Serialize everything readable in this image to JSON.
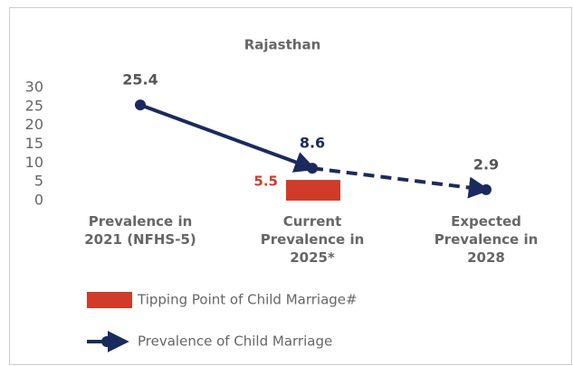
{
  "chart_data": {
    "type": "line",
    "title": "Rajasthan",
    "categories": [
      "Prevalence in\n2021 (NFHS-5)",
      "Current\nPrevalence in\n2025*",
      "Expected\nPrevalence in\n2028"
    ],
    "series": [
      {
        "name": "Tipping Point of Child Marriage#",
        "type": "bar",
        "color": "#d13b2a",
        "values": [
          null,
          5.5,
          null
        ]
      },
      {
        "name": "Prevalence of Child Marriage",
        "type": "line",
        "color": "#1b2a5e",
        "values": [
          25.4,
          8.6,
          2.9
        ]
      }
    ],
    "ylim": [
      0,
      30
    ],
    "yticks": [
      0,
      5,
      10,
      15,
      20,
      25,
      30
    ],
    "grid": false,
    "legend": "bottom"
  }
}
